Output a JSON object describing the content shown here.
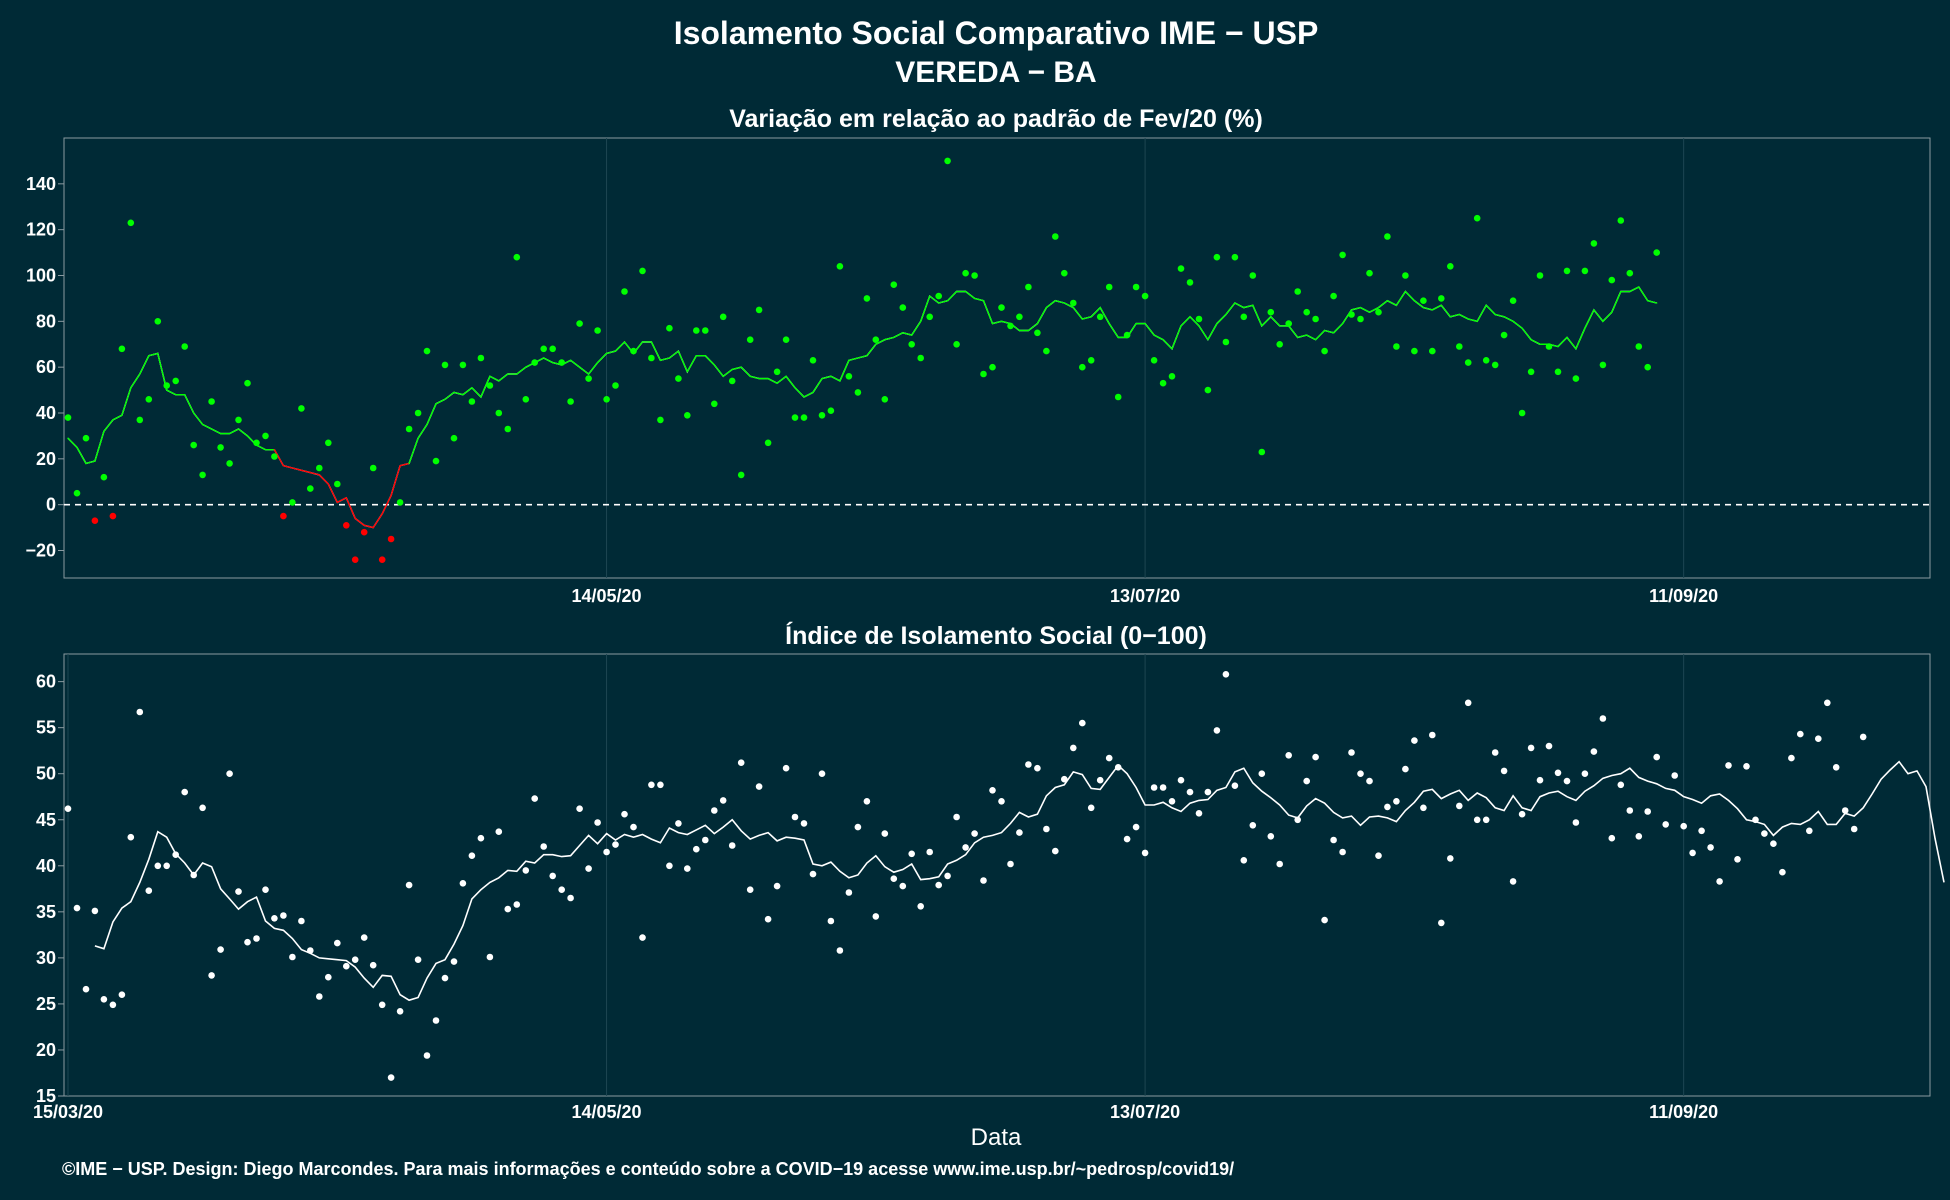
{
  "header": {
    "title": "Isolamento Social Comparativo IME − USP",
    "subtitle": "VEREDA − BA"
  },
  "footer": {
    "credit": "©IME − USP. Design: Diego Marcondes. Para mais informações e conteúdo sobre a COVID−19 acesse www.ime.usp.br/~pedrosp/covid19/"
  },
  "colors": {
    "background": "#002a36",
    "positive": "#00ff00",
    "negative": "#ff0000",
    "index": "#ffffff",
    "frame": "#8a9aa0"
  },
  "chart_data": [
    {
      "type": "scatter",
      "title": "Variação em relação ao padrão de Fev/20 (%)",
      "xlabel": "",
      "ylabel": "",
      "x_start": "15/03/20",
      "x_end": "08/10/20",
      "x_ticks": [
        "14/05/20",
        "13/07/20",
        "11/09/20"
      ],
      "y_ticks": [
        -20,
        0,
        20,
        40,
        60,
        80,
        100,
        120,
        140
      ],
      "ylim": [
        -32,
        160
      ],
      "grid": true,
      "reference_line": 0,
      "series": [
        {
          "kind": "daily_points",
          "values": [
            38,
            5,
            29,
            -7,
            12,
            -5,
            68,
            123,
            37,
            46,
            80,
            52,
            54,
            69,
            26,
            13,
            45,
            25,
            18,
            37,
            53,
            27,
            30,
            21,
            -5,
            1,
            42,
            7,
            16,
            27,
            9,
            -9,
            -24,
            -12,
            16,
            -24,
            -15,
            1,
            33,
            40,
            67,
            19,
            61,
            29,
            61,
            45,
            64,
            52,
            40,
            33,
            108,
            46,
            62,
            68,
            68,
            62,
            45,
            79,
            55,
            76,
            46,
            52,
            93,
            67,
            102,
            64,
            37,
            77,
            55,
            39,
            76,
            76,
            44,
            82,
            54,
            13,
            72,
            85,
            27,
            58,
            72,
            38,
            38,
            63,
            39,
            41,
            104,
            56,
            49,
            90,
            72,
            46,
            96,
            86,
            70,
            64,
            82,
            91,
            150,
            70,
            101,
            100,
            57,
            60,
            86,
            78,
            82,
            95,
            75,
            67,
            117,
            101,
            88,
            60,
            63,
            82,
            95,
            47,
            74,
            95,
            91,
            63,
            53,
            56,
            103,
            97,
            81,
            50,
            108,
            71,
            108,
            82,
            100,
            23,
            84,
            70,
            79,
            93,
            84,
            81,
            67,
            91,
            109,
            83,
            81,
            101,
            84,
            117,
            69,
            100,
            67,
            89,
            67,
            90,
            104,
            69,
            62,
            125,
            63,
            61,
            74,
            89,
            40,
            58,
            100,
            69,
            58,
            102,
            55,
            102,
            114,
            61,
            98,
            124,
            101,
            69,
            60,
            110
          ]
        },
        {
          "kind": "moving_average",
          "start_index": 0,
          "values": [
            29,
            25,
            18,
            19,
            32,
            37,
            39,
            51,
            57,
            65,
            66,
            50,
            48,
            48,
            40,
            35,
            33,
            31,
            31,
            33,
            30,
            26,
            24,
            24,
            17,
            16,
            15,
            14,
            13,
            9,
            1,
            3,
            -6,
            -9,
            -10,
            -4,
            4,
            17,
            18,
            29,
            35,
            44,
            46,
            49,
            48,
            51,
            47,
            56,
            54,
            57,
            57,
            60,
            62,
            64,
            62,
            61,
            63,
            60,
            57,
            62,
            66,
            67,
            71,
            66,
            71,
            71,
            63,
            64,
            67,
            58,
            65,
            65,
            61,
            56,
            59,
            60,
            56,
            55,
            55,
            53,
            56,
            51,
            47,
            49,
            55,
            56,
            54,
            63,
            64,
            65,
            70,
            72,
            73,
            75,
            74,
            80,
            91,
            88,
            89,
            93,
            93,
            90,
            89,
            79,
            80,
            79,
            76,
            76,
            79,
            86,
            89,
            88,
            86,
            81,
            82,
            86,
            79,
            73,
            73,
            79,
            79,
            74,
            72,
            68,
            78,
            82,
            78,
            72,
            79,
            83,
            88,
            86,
            87,
            78,
            82,
            78,
            78,
            73,
            74,
            72,
            76,
            75,
            79,
            85,
            86,
            84,
            86,
            89,
            87,
            93,
            89,
            86,
            85,
            87,
            82,
            83,
            81,
            80,
            87,
            83,
            82,
            80,
            77,
            72,
            70,
            70,
            69,
            73,
            68,
            77,
            85,
            80,
            84,
            93,
            93,
            95,
            89,
            88
          ]
        }
      ]
    },
    {
      "type": "scatter",
      "title": "Índice de Isolamento Social (0−100)",
      "xlabel": "Data",
      "ylabel": "",
      "x_start": "15/03/20",
      "x_end": "08/10/20",
      "x_ticks": [
        "15/03/20",
        "14/05/20",
        "13/07/20",
        "11/09/20"
      ],
      "y_ticks": [
        15,
        20,
        25,
        30,
        35,
        40,
        45,
        50,
        55,
        60
      ],
      "ylim": [
        15,
        63
      ],
      "grid": true,
      "series": [
        {
          "kind": "daily_points",
          "values": [
            46.2,
            35.4,
            26.6,
            35.1,
            25.5,
            24.9,
            26.0,
            43.1,
            56.7,
            37.3,
            40.0,
            40.0,
            41.2,
            48.0,
            39.0,
            46.3,
            28.1,
            30.9,
            50.0,
            37.2,
            31.7,
            32.1,
            37.4,
            34.3,
            34.6,
            30.1,
            34.0,
            30.8,
            25.8,
            27.9,
            31.6,
            29.1,
            29.8,
            32.2,
            29.2,
            24.9,
            17.0,
            24.2,
            37.9,
            29.8,
            19.4,
            23.2,
            27.8,
            29.6,
            38.1,
            41.1,
            43.0,
            30.1,
            43.7,
            35.3,
            35.8,
            39.5,
            47.3,
            42.1,
            38.9,
            37.4,
            36.5,
            46.2,
            39.7,
            44.7,
            41.5,
            42.3,
            45.6,
            44.2,
            32.2,
            48.8,
            48.8,
            40.0,
            44.6,
            39.7,
            41.8,
            42.8,
            46.0,
            47.1,
            42.2,
            51.2,
            37.4,
            48.6,
            34.2,
            37.8,
            50.6,
            45.3,
            44.6,
            39.1,
            50.0,
            34.0,
            30.8,
            37.1,
            44.2,
            47.0,
            34.5,
            43.5,
            38.6,
            37.8,
            41.3,
            35.6,
            41.5,
            37.9,
            38.9,
            45.3,
            42.0,
            43.5,
            38.4,
            48.2,
            47.0,
            40.2,
            43.6,
            51.0,
            50.6,
            44.0,
            41.6,
            49.4,
            52.8,
            55.5,
            46.3,
            49.3,
            51.7,
            50.7,
            42.9,
            44.2,
            41.4,
            48.5,
            48.5,
            47.0,
            49.3,
            48.0,
            45.7,
            48.0,
            54.7,
            60.8,
            48.7,
            40.6,
            44.4,
            50.0,
            43.2,
            40.2,
            52.0,
            45.0,
            49.2,
            51.8,
            34.1,
            42.8,
            41.5,
            52.3,
            50.0,
            49.2,
            41.1,
            46.4,
            47.0,
            50.5,
            53.6,
            46.3,
            54.2,
            33.8,
            40.8,
            46.5,
            57.7,
            45.0,
            45.0,
            52.3,
            50.3,
            38.3,
            45.6,
            52.8,
            49.3,
            53.0,
            50.1,
            49.2,
            44.7,
            50.0,
            52.4,
            56.0,
            43.0,
            48.8,
            46.0,
            43.2,
            45.9,
            51.8,
            44.5,
            49.8,
            44.3,
            41.4,
            43.8,
            42.0,
            38.3,
            50.9,
            40.7,
            50.8,
            45.0,
            43.5,
            42.4,
            39.3,
            51.7,
            54.3,
            43.8,
            53.8,
            57.7,
            50.7,
            46.0,
            44.0,
            54.0
          ]
        },
        {
          "kind": "moving_average",
          "start_index": 3,
          "values": [
            31.3,
            31.0,
            33.9,
            35.4,
            36.1,
            38.2,
            40.7,
            43.7,
            43.1,
            41.3,
            40.3,
            39.0,
            40.3,
            39.9,
            37.5,
            36.4,
            35.3,
            36.1,
            36.6,
            34.0,
            33.2,
            33.0,
            32.1,
            30.9,
            30.5,
            30.0,
            29.9,
            29.8,
            29.7,
            29.0,
            27.8,
            26.8,
            28.1,
            28.0,
            26.0,
            25.4,
            25.7,
            27.8,
            29.4,
            29.8,
            31.5,
            33.5,
            36.4,
            37.4,
            38.2,
            38.7,
            39.5,
            39.4,
            40.5,
            40.3,
            41.2,
            41.2,
            41.0,
            41.1,
            42.2,
            43.3,
            42.4,
            43.5,
            42.8,
            43.4,
            43.1,
            43.4,
            42.9,
            42.5,
            44.1,
            43.6,
            43.4,
            43.9,
            44.4,
            43.5,
            44.2,
            45.0,
            43.8,
            42.9,
            43.3,
            43.6,
            42.7,
            43.1,
            43.0,
            42.8,
            40.2,
            40.0,
            40.4,
            39.4,
            38.7,
            39.0,
            40.3,
            41.1,
            39.9,
            39.3,
            39.6,
            40.2,
            38.5,
            38.6,
            38.8,
            40.2,
            40.6,
            41.2,
            42.5,
            43.1,
            43.3,
            43.6,
            44.6,
            45.8,
            45.3,
            45.6,
            47.6,
            48.5,
            48.8,
            50.2,
            49.9,
            48.4,
            48.3,
            49.6,
            50.9,
            50.0,
            48.5,
            46.6,
            46.6,
            46.9,
            46.3,
            45.9,
            46.8,
            47.1,
            47.2,
            48.2,
            48.5,
            50.2,
            50.6,
            49.0,
            48.1,
            47.4,
            46.6,
            45.5,
            45.2,
            46.5,
            47.3,
            46.8,
            45.8,
            45.2,
            45.4,
            44.4,
            45.3,
            45.4,
            45.2,
            44.8,
            46.0,
            46.9,
            48.1,
            48.3,
            47.3,
            47.8,
            48.2,
            47.1,
            47.9,
            47.4,
            46.3,
            46.0,
            47.6,
            46.3,
            46.0,
            47.5,
            47.9,
            48.1,
            47.5,
            47.1,
            48.1,
            48.7,
            49.5,
            49.8,
            50.0,
            50.6,
            49.6,
            49.2,
            48.9,
            48.4,
            48.2,
            47.5,
            47.2,
            46.8,
            47.6,
            47.8,
            47.1,
            46.2,
            45.0,
            44.8,
            44.5,
            43.3,
            44.2,
            44.6,
            44.5,
            45.0,
            45.9,
            44.5,
            44.5,
            45.7,
            45.4,
            46.3,
            47.8,
            49.4,
            50.4,
            51.3,
            50.0,
            50.3,
            48.6,
            43.0,
            38.2
          ]
        }
      ]
    }
  ]
}
